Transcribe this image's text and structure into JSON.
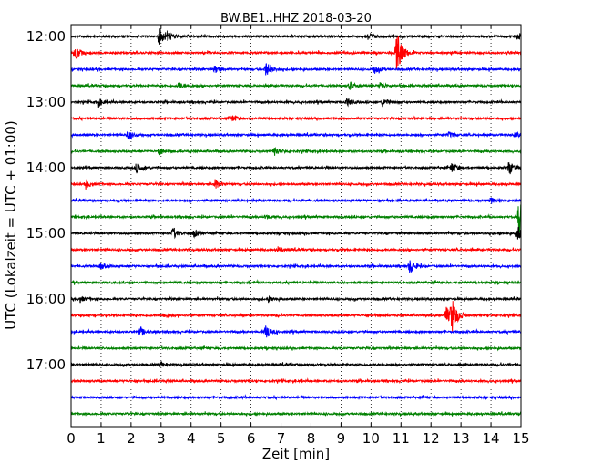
{
  "chart_data": {
    "type": "line",
    "title": "BW.BE1..HHZ 2018-03-20",
    "xlabel": "Zeit  [min]",
    "ylabel": "UTC (Lokalzeit = UTC + 01:00)",
    "xlim": [
      0,
      15
    ],
    "x_ticks": [
      "0",
      "1",
      "2",
      "3",
      "4",
      "5",
      "6",
      "7",
      "8",
      "9",
      "10",
      "11",
      "12",
      "13",
      "14",
      "15"
    ],
    "y_ticks": [
      "12:00",
      "13:00",
      "14:00",
      "15:00",
      "16:00",
      "17:00"
    ],
    "grid": "vertical dotted",
    "trace_colors": [
      "#000000",
      "#ff0000",
      "#0000ff",
      "#008000"
    ],
    "traces": [
      {
        "start": "12:00",
        "color": "#000000",
        "events": [
          {
            "x": 2.95,
            "amp": 9
          },
          {
            "x": 3.2,
            "amp": 5
          },
          {
            "x": 9.9,
            "amp": 4
          },
          {
            "x": 14.9,
            "amp": 4
          }
        ]
      },
      {
        "start": "12:15",
        "color": "#ff0000",
        "events": [
          {
            "x": 0.15,
            "amp": 7
          },
          {
            "x": 10.85,
            "amp": 14
          },
          {
            "x": 10.9,
            "amp": 10
          }
        ]
      },
      {
        "start": "12:30",
        "color": "#0000ff",
        "events": [
          {
            "x": 4.8,
            "amp": 4
          },
          {
            "x": 6.5,
            "amp": 8
          },
          {
            "x": 10.1,
            "amp": 5
          }
        ]
      },
      {
        "start": "12:45",
        "color": "#008000",
        "events": [
          {
            "x": 3.6,
            "amp": 4
          },
          {
            "x": 9.3,
            "amp": 4
          },
          {
            "x": 10.3,
            "amp": 4
          }
        ]
      },
      {
        "start": "13:00",
        "color": "#000000",
        "events": [
          {
            "x": 0.9,
            "amp": 4
          },
          {
            "x": 9.2,
            "amp": 4
          },
          {
            "x": 10.4,
            "amp": 4
          }
        ]
      },
      {
        "start": "13:15",
        "color": "#ff0000",
        "events": [
          {
            "x": 5.4,
            "amp": 3
          }
        ]
      },
      {
        "start": "13:30",
        "color": "#0000ff",
        "events": [
          {
            "x": 1.9,
            "amp": 5
          },
          {
            "x": 12.6,
            "amp": 3
          },
          {
            "x": 14.8,
            "amp": 3
          }
        ]
      },
      {
        "start": "13:45",
        "color": "#008000",
        "events": [
          {
            "x": 2.95,
            "amp": 4
          },
          {
            "x": 6.8,
            "amp": 5
          }
        ]
      },
      {
        "start": "14:00",
        "color": "#000000",
        "events": [
          {
            "x": 2.2,
            "amp": 6
          },
          {
            "x": 12.7,
            "amp": 6
          },
          {
            "x": 14.6,
            "amp": 7
          }
        ]
      },
      {
        "start": "14:15",
        "color": "#ff0000",
        "events": [
          {
            "x": 0.5,
            "amp": 4
          },
          {
            "x": 4.8,
            "amp": 5
          }
        ]
      },
      {
        "start": "14:30",
        "color": "#0000ff",
        "events": [
          {
            "x": 14.0,
            "amp": 3
          }
        ]
      },
      {
        "start": "14:45",
        "color": "#008000",
        "events": [
          {
            "x": 6.5,
            "amp": 2
          },
          {
            "x": 14.95,
            "amp": 24
          }
        ]
      },
      {
        "start": "15:00",
        "color": "#000000",
        "events": [
          {
            "x": 3.4,
            "amp": 6
          },
          {
            "x": 4.1,
            "amp": 4
          },
          {
            "x": 14.9,
            "amp": 9
          }
        ]
      },
      {
        "start": "15:15",
        "color": "#ff0000",
        "events": [
          {
            "x": 6.9,
            "amp": 3
          }
        ]
      },
      {
        "start": "15:30",
        "color": "#0000ff",
        "events": [
          {
            "x": 1.0,
            "amp": 3
          },
          {
            "x": 11.3,
            "amp": 8
          }
        ]
      },
      {
        "start": "15:45",
        "color": "#008000",
        "events": []
      },
      {
        "start": "16:00",
        "color": "#000000",
        "events": [
          {
            "x": 0.3,
            "amp": 3
          },
          {
            "x": 6.6,
            "amp": 3
          }
        ]
      },
      {
        "start": "16:15",
        "color": "#ff0000",
        "events": [
          {
            "x": 3.1,
            "amp": 3
          },
          {
            "x": 12.7,
            "amp": 18
          },
          {
            "x": 12.5,
            "amp": 10
          }
        ]
      },
      {
        "start": "16:30",
        "color": "#0000ff",
        "events": [
          {
            "x": 2.3,
            "amp": 4
          },
          {
            "x": 6.5,
            "amp": 7
          }
        ]
      },
      {
        "start": "16:45",
        "color": "#008000",
        "events": []
      },
      {
        "start": "17:00",
        "color": "#000000",
        "events": [
          {
            "x": 3.0,
            "amp": 3
          }
        ]
      },
      {
        "start": "17:15",
        "color": "#ff0000",
        "events": []
      },
      {
        "start": "17:30",
        "color": "#0000ff",
        "events": []
      },
      {
        "start": "17:45",
        "color": "#008000",
        "events": []
      }
    ]
  }
}
